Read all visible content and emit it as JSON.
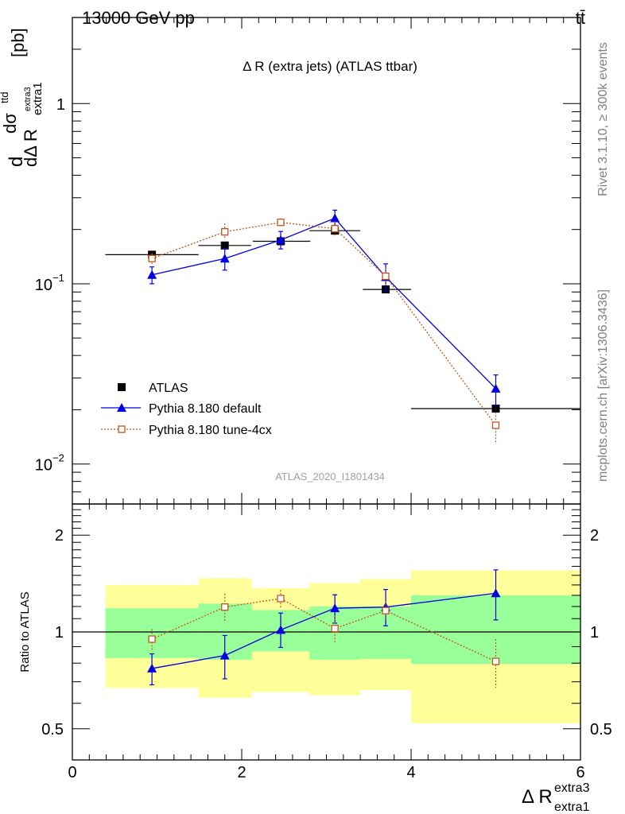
{
  "header": {
    "left": "13000 GeV pp",
    "right": "tt̄"
  },
  "side_labels": {
    "rivet": "Rivet 3.1.10, ≥ 300k events",
    "mcplots": "mcplots.cern.ch [arXiv:1306.3436]"
  },
  "watermark": "ATLAS_2020_I1801434",
  "chart_data": [
    {
      "type": "scatter",
      "panel": "main",
      "title": "Δ R (extra jets) (ATLAS ttbar)",
      "ylabel": "dσ^{ttd}/dΔ R_{extra1}^{extra3} [pb]",
      "ylabel_parts": {
        "d1": "d",
        "sigma": "dσ",
        "sigma_sup": "ttd",
        "den": "dΔ R",
        "den_sub": "extra1",
        "den_sup": "extra3",
        "unit": "[pb]"
      },
      "yscale": "log",
      "ylim": [
        0.006,
        3.0
      ],
      "xlim": [
        0,
        6
      ],
      "y_tick_labels": [
        {
          "base": "10",
          "exp": "−2",
          "value": 0.01
        },
        {
          "base": "10",
          "exp": "−1",
          "value": 0.1
        },
        {
          "base": "1",
          "exp": "",
          "value": 1
        }
      ],
      "legend": {
        "placement": "bottom-left"
      },
      "series": [
        {
          "name": "ATLAS",
          "color": "#000000",
          "marker": "filled-square",
          "line": "none",
          "x": [
            0.94,
            1.8,
            2.46,
            3.1,
            3.7,
            5.0
          ],
          "y": [
            0.145,
            0.163,
            0.172,
            0.197,
            0.093,
            0.0203
          ],
          "xerr_lo": [
            0.55,
            0.31,
            0.33,
            0.3,
            0.27,
            1.0
          ],
          "xerr_hi": [
            0.55,
            0.31,
            0.35,
            0.3,
            0.3,
            1.0
          ]
        },
        {
          "name": "Pythia 8.180 default",
          "color": "#0000e0",
          "marker": "filled-triangle",
          "line": "solid",
          "x": [
            0.94,
            1.8,
            2.46,
            3.1,
            3.7,
            5.0
          ],
          "y": [
            0.112,
            0.138,
            0.175,
            0.231,
            0.109,
            0.0262
          ],
          "yerr_lo": [
            0.012,
            0.019,
            0.019,
            0.02,
            0.018,
            0.005
          ],
          "yerr_hi": [
            0.012,
            0.019,
            0.02,
            0.025,
            0.02,
            0.005
          ]
        },
        {
          "name": "Pythia 8.180 tune-4cx",
          "color": "#c0561a",
          "marker": "open-square",
          "line": "dotted",
          "x": [
            0.94,
            1.8,
            2.46,
            3.1,
            3.7,
            5.0
          ],
          "y": [
            0.138,
            0.194,
            0.219,
            0.202,
            0.11,
            0.0164
          ],
          "yerr_lo": [
            0.01,
            0.018,
            0.012,
            0.02,
            0.012,
            0.0035
          ],
          "yerr_hi": [
            0.01,
            0.022,
            0.012,
            0.02,
            0.012,
            0.003
          ]
        }
      ]
    },
    {
      "type": "scatter",
      "panel": "ratio",
      "ylabel": "Ratio to ATLAS",
      "xlabel": "Δ R_{extra1}^{extra3}",
      "xlabel_parts": {
        "main": "Δ R",
        "sub": "extra1",
        "sup": "extra3"
      },
      "xlim": [
        0,
        6
      ],
      "x_ticks": [
        0,
        2,
        4,
        6
      ],
      "yscale": "log",
      "ylim": [
        0.4,
        2.5
      ],
      "y_ticks": [
        0.5,
        1,
        2
      ],
      "uncertainty_bands": {
        "bins": [
          [
            0.39,
            1.49
          ],
          [
            1.49,
            2.12
          ],
          [
            2.12,
            2.8
          ],
          [
            2.8,
            3.4
          ],
          [
            3.4,
            4.0
          ],
          [
            4.0,
            6.0
          ]
        ],
        "inner": {
          "color": "#99ff99",
          "lo": [
            0.83,
            0.82,
            0.87,
            0.82,
            0.825,
            0.795
          ],
          "hi": [
            1.185,
            1.225,
            1.17,
            1.2,
            1.2,
            1.3
          ]
        },
        "outer": {
          "color": "#ffff99",
          "lo": [
            0.67,
            0.625,
            0.65,
            0.635,
            0.66,
            0.52
          ],
          "hi": [
            1.4,
            1.47,
            1.37,
            1.42,
            1.46,
            1.555
          ]
        }
      },
      "series": [
        {
          "name": "Pythia 8.180 default",
          "color": "#0000e0",
          "marker": "filled-triangle",
          "line": "solid",
          "x": [
            0.94,
            1.8,
            2.46,
            3.1,
            3.7,
            5.0
          ],
          "y": [
            0.77,
            0.845,
            1.015,
            1.185,
            1.195,
            1.32
          ],
          "yerr_lo": [
            0.085,
            0.13,
            0.12,
            0.12,
            0.15,
            0.23
          ],
          "yerr_hi": [
            0.085,
            0.13,
            0.13,
            0.12,
            0.16,
            0.24
          ]
        },
        {
          "name": "Pythia 8.180 tune-4cx",
          "color": "#c0561a",
          "marker": "open-square",
          "line": "dotted",
          "x": [
            0.94,
            1.8,
            2.46,
            3.1,
            3.7,
            5.0
          ],
          "y": [
            0.95,
            1.195,
            1.27,
            1.025,
            1.165,
            0.81
          ],
          "yerr_lo": [
            0.07,
            0.12,
            0.08,
            0.1,
            0.08,
            0.14
          ],
          "yerr_hi": [
            0.07,
            0.12,
            0.08,
            0.1,
            0.08,
            0.14
          ]
        }
      ]
    }
  ]
}
